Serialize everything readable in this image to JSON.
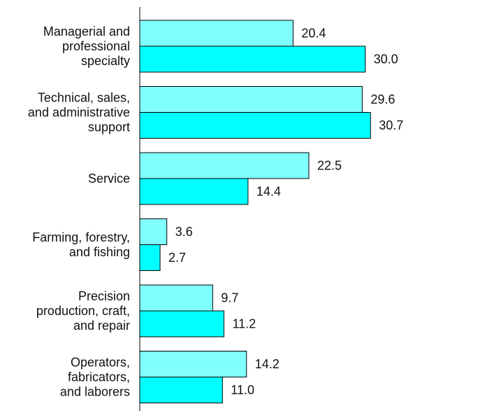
{
  "chart_data": {
    "type": "bar",
    "orientation": "horizontal",
    "title": "",
    "xlabel": "",
    "ylabel": "",
    "xlim": [
      0,
      45
    ],
    "grid": false,
    "legend": "none",
    "categories": [
      [
        "Managerial and",
        "professional",
        "specialty"
      ],
      [
        "Technical, sales,",
        "and administrative",
        "support"
      ],
      [
        "Service"
      ],
      [
        "Farming, forestry,",
        "and fishing"
      ],
      [
        "Precision",
        "production, craft,",
        "and repair"
      ],
      [
        "Operators,",
        "fabricators,",
        "and laborers"
      ]
    ],
    "series": [
      {
        "values": [
          20.4,
          29.6,
          22.5,
          3.6,
          9.7,
          14.2
        ],
        "color": "#80FFFF"
      },
      {
        "values": [
          30.0,
          30.7,
          14.4,
          2.7,
          11.2,
          11.0
        ],
        "color": "#00FFFF"
      }
    ]
  }
}
